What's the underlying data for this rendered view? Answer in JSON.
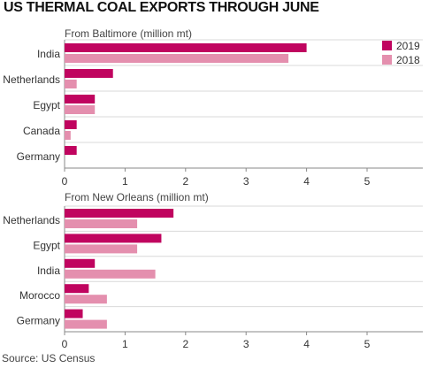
{
  "title": "US THERMAL COAL EXPORTS THROUGH JUNE",
  "source": "Source: US Census",
  "colors": {
    "s2019": "#c0045f",
    "s2018": "#e48fae",
    "grid": "#d9d9d9",
    "axis": "#888888"
  },
  "legend": [
    {
      "name": "2019",
      "color": "#c0045f"
    },
    {
      "name": "2018",
      "color": "#e48fae"
    }
  ],
  "chart_data": [
    {
      "type": "bar",
      "orientation": "horizontal",
      "subtitle": "From Baltimore (million mt)",
      "categories": [
        "India",
        "Netherlands",
        "Egypt",
        "Canada",
        "Germany"
      ],
      "series": [
        {
          "name": "2019",
          "values": [
            4.0,
            0.8,
            0.5,
            0.2,
            0.2
          ]
        },
        {
          "name": "2018",
          "values": [
            3.7,
            0.2,
            0.5,
            0.1,
            0
          ]
        }
      ],
      "xlim": [
        0,
        5
      ],
      "xticks": [
        0,
        1,
        2,
        3,
        4,
        5
      ],
      "grid": true,
      "legend": "top-right"
    },
    {
      "type": "bar",
      "orientation": "horizontal",
      "subtitle": "From New Orleans (million mt)",
      "categories": [
        "Netherlands",
        "Egypt",
        "India",
        "Morocco",
        "Germany"
      ],
      "series": [
        {
          "name": "2019",
          "values": [
            1.8,
            1.6,
            0.5,
            0.4,
            0.3
          ]
        },
        {
          "name": "2018",
          "values": [
            1.2,
            1.2,
            1.5,
            0.7,
            0.7
          ]
        }
      ],
      "xlim": [
        0,
        5
      ],
      "xticks": [
        0,
        1,
        2,
        3,
        4,
        5
      ],
      "grid": true
    }
  ]
}
